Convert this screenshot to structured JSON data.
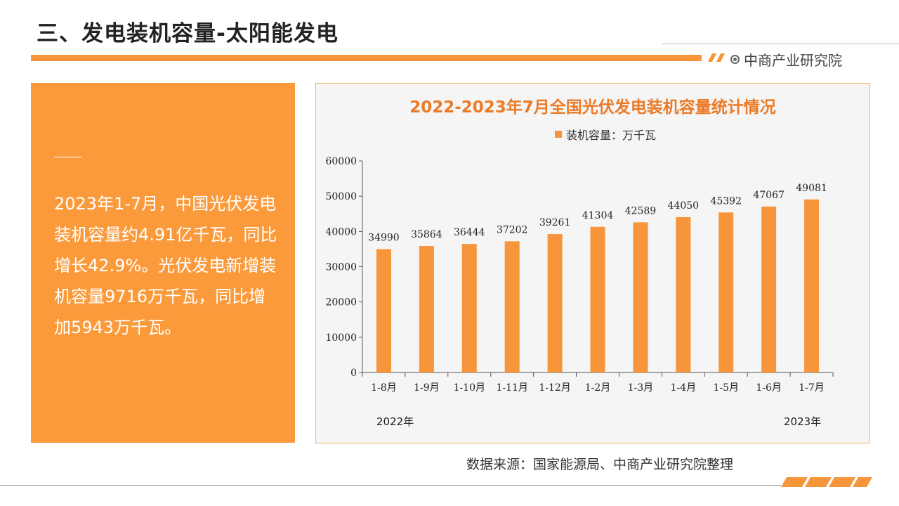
{
  "header": {
    "title": "三、发电装机容量-太阳能发电",
    "brand": "中商产业研究院"
  },
  "left_panel": {
    "text": "2023年1-7月，中国光伏发电装机容量约4.91亿千瓦，同比增长42.9%。光伏发电新增装机容量9716万千瓦，同比增加5943万千瓦。"
  },
  "colors": {
    "accent": "#f7953a",
    "panel": "#fb9a3b",
    "title": "#ec7a26"
  },
  "chart_data": {
    "type": "bar",
    "title": "2022-2023年7月全国光伏发电装机容量统计情况",
    "legend": "装机容量：万千瓦",
    "legend_position": "top-center",
    "categories": [
      "1-8月",
      "1-9月",
      "1-10月",
      "1-11月",
      "1-12月",
      "1-2月",
      "1-3月",
      "1-4月",
      "1-5月",
      "1-6月",
      "1-7月"
    ],
    "values": [
      34990,
      35864,
      36444,
      37202,
      39261,
      41304,
      42589,
      44050,
      45392,
      47067,
      49081
    ],
    "yticks": [
      "0",
      "10000",
      "20000",
      "30000",
      "40000",
      "50000",
      "60000"
    ],
    "ylim": [
      0,
      60000
    ],
    "grid": false,
    "year_labels": [
      "2022年",
      "2023年"
    ]
  },
  "footer": {
    "source": "数据来源：国家能源局、中商产业研究院整理"
  }
}
